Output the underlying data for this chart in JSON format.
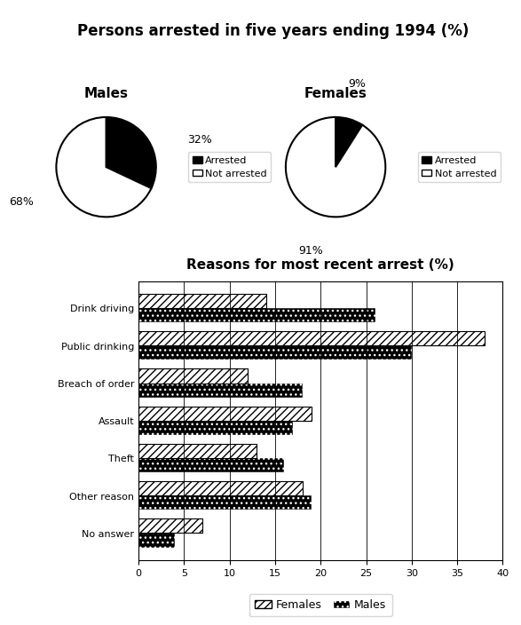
{
  "pie_title": "Persons arrested in five years ending 1994 (%)",
  "males_label": "Males",
  "females_label": "Females",
  "males_arrested": 32,
  "males_not_arrested": 68,
  "females_arrested": 9,
  "females_not_arrested": 91,
  "pie_colors_arrested": "#000000",
  "pie_colors_not_arrested": "#ffffff",
  "bar_title": "Reasons for most recent arrest (%)",
  "categories": [
    "Drink driving",
    "Public drinking",
    "Breach of order",
    "Assault",
    "Theft",
    "Other reason",
    "No answer"
  ],
  "males_values": [
    26,
    30,
    18,
    17,
    16,
    19,
    4
  ],
  "females_values": [
    14,
    38,
    12,
    19,
    13,
    18,
    7
  ],
  "xlim": [
    0,
    40
  ],
  "xticks": [
    0,
    5,
    10,
    15,
    20,
    25,
    30,
    35,
    40
  ],
  "legend_females": "Females",
  "legend_males": "Males",
  "background_color": "#ffffff"
}
